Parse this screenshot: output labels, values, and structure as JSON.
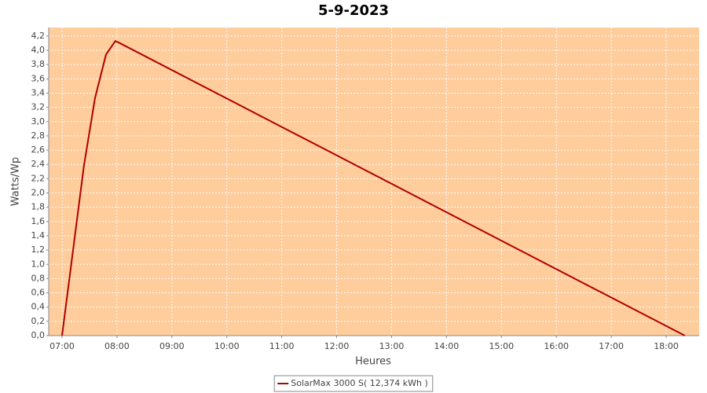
{
  "chart_data": {
    "type": "line",
    "title": "5-9-2023",
    "x_label": "Heures",
    "y_label": "Watts/Wp",
    "x": [
      7.0,
      7.4,
      7.6,
      7.8,
      7.97,
      8.03,
      18.34
    ],
    "series": [
      {
        "name": "SolarMax 3000 S( 12,374 kWh )",
        "color": "#b00000",
        "values": [
          0,
          2.39,
          3.33,
          3.94,
          4.13,
          4.11,
          0
        ]
      }
    ],
    "xlim": [
      6.757,
      18.6
    ],
    "xticks": [
      {
        "value": 7,
        "label": "07:00"
      },
      {
        "value": 8,
        "label": "08:00"
      },
      {
        "value": 9,
        "label": "09:00"
      },
      {
        "value": 10,
        "label": "10:00"
      },
      {
        "value": 11,
        "label": "11:00"
      },
      {
        "value": 12,
        "label": "12:00"
      },
      {
        "value": 13,
        "label": "13:00"
      },
      {
        "value": 14,
        "label": "14:00"
      },
      {
        "value": 15,
        "label": "15:00"
      },
      {
        "value": 16,
        "label": "16:00"
      },
      {
        "value": 17,
        "label": "17:00"
      },
      {
        "value": 18,
        "label": "18:00"
      }
    ],
    "ylim": [
      0,
      4.32
    ],
    "yticks": [
      {
        "value": 0,
        "label": "0,0"
      },
      {
        "value": 0.2,
        "label": "0,2"
      },
      {
        "value": 0.4,
        "label": "0,4"
      },
      {
        "value": 0.6,
        "label": "0,6"
      },
      {
        "value": 0.8,
        "label": "0,8"
      },
      {
        "value": 1.0,
        "label": "1,0"
      },
      {
        "value": 1.2,
        "label": "1,2"
      },
      {
        "value": 1.4,
        "label": "1,4"
      },
      {
        "value": 1.6,
        "label": "1,6"
      },
      {
        "value": 1.8,
        "label": "1,8"
      },
      {
        "value": 2.0,
        "label": "2,0"
      },
      {
        "value": 2.2,
        "label": "2,2"
      },
      {
        "value": 2.4,
        "label": "2,4"
      },
      {
        "value": 2.6,
        "label": "2,6"
      },
      {
        "value": 2.8,
        "label": "2,8"
      },
      {
        "value": 3.0,
        "label": "3,0"
      },
      {
        "value": 3.2,
        "label": "3,2"
      },
      {
        "value": 3.4,
        "label": "3,4"
      },
      {
        "value": 3.6,
        "label": "3,6"
      },
      {
        "value": 3.8,
        "label": "3,8"
      },
      {
        "value": 4.0,
        "label": "4,0"
      },
      {
        "value": 4.2,
        "label": "4,2"
      }
    ],
    "grid": true,
    "plot_background": "#ffcc9c"
  }
}
